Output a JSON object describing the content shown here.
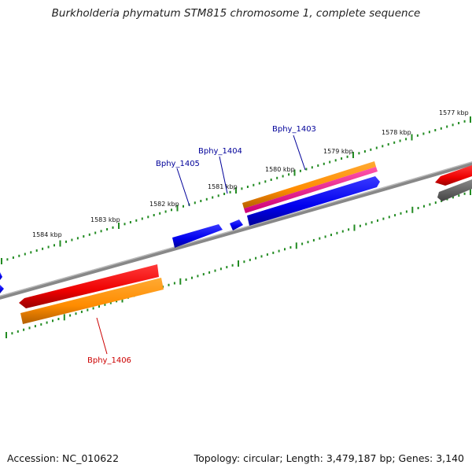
{
  "title": "Burkholderia phymatum STM815 chromosome 1, complete sequence",
  "footer": {
    "accession": "Accession: NC_010622",
    "topology": "Topology: circular; Length: 3,479,187 bp; Genes: 3,140"
  },
  "ticks": [
    "1577 kbp",
    "1578 kbp",
    "1579 kbp",
    "1580 kbp",
    "1581 kbp",
    "1582 kbp",
    "1583 kbp",
    "1584 kbp"
  ],
  "genes": [
    {
      "name": "Bphy_1403",
      "color": "#000099"
    },
    {
      "name": "Bphy_1404",
      "color": "#000099"
    },
    {
      "name": "Bphy_1405",
      "color": "#000099"
    },
    {
      "name": "Bphy_1406",
      "color": "#cc0000"
    }
  ],
  "colors": {
    "backbone": "#777777",
    "tick_dots": "#228b22",
    "cds_forward": "#ff0000",
    "cds_reverse": "#0000ff",
    "orange_feature": "#ff8c00",
    "pink_feature": "#ff1493",
    "gray_feature": "#606060"
  }
}
